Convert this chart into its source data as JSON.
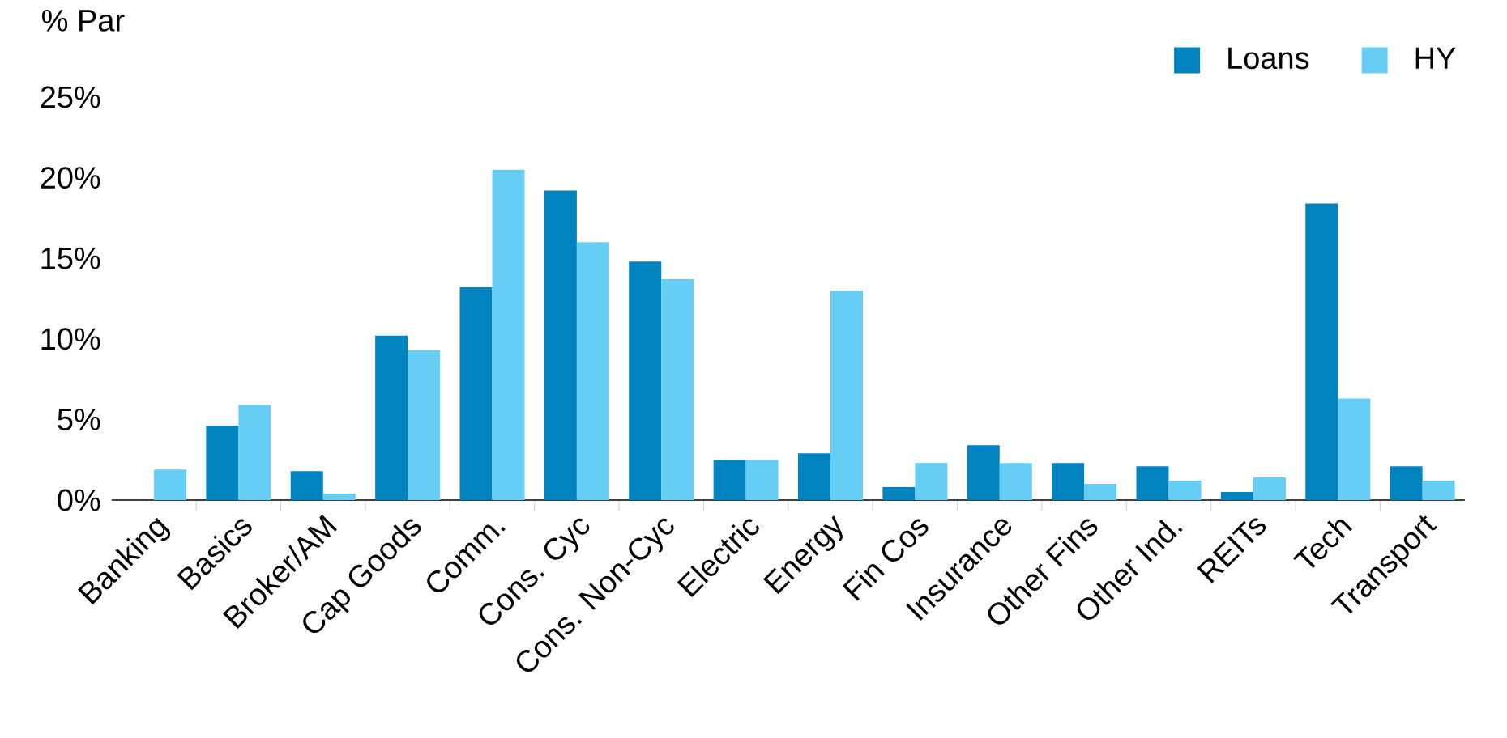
{
  "chart_data": {
    "type": "bar",
    "ylabel": "% Par",
    "categories": [
      "Banking",
      "Basics",
      "Broker/AM",
      "Cap Goods",
      "Comm.",
      "Cons. Cyc",
      "Cons. Non-Cyc",
      "Electric",
      "Energy",
      "Fin Cos",
      "Insurance",
      "Other Fins",
      "Other Ind.",
      "REITs",
      "Tech",
      "Transport"
    ],
    "series": [
      {
        "name": "Loans",
        "color": "#0083bf",
        "values": [
          0,
          4.6,
          1.8,
          10.2,
          13.2,
          19.2,
          14.8,
          2.5,
          2.9,
          0.8,
          3.4,
          2.3,
          2.1,
          0.5,
          18.4,
          2.1
        ]
      },
      {
        "name": "HY",
        "color": "#66cef5",
        "values": [
          1.9,
          5.9,
          0.4,
          9.3,
          20.5,
          16.0,
          13.7,
          2.5,
          13.0,
          2.3,
          2.3,
          1.0,
          1.2,
          1.4,
          6.3,
          1.2
        ]
      }
    ],
    "ylim": [
      0,
      25
    ],
    "yticks": [
      {
        "value": 0,
        "label": "0%"
      },
      {
        "value": 5,
        "label": "5%"
      },
      {
        "value": 10,
        "label": "10%"
      },
      {
        "value": 15,
        "label": "15%"
      },
      {
        "value": 20,
        "label": "20%"
      },
      {
        "value": 25,
        "label": "25%"
      }
    ],
    "legend": "top right",
    "grid": false
  }
}
